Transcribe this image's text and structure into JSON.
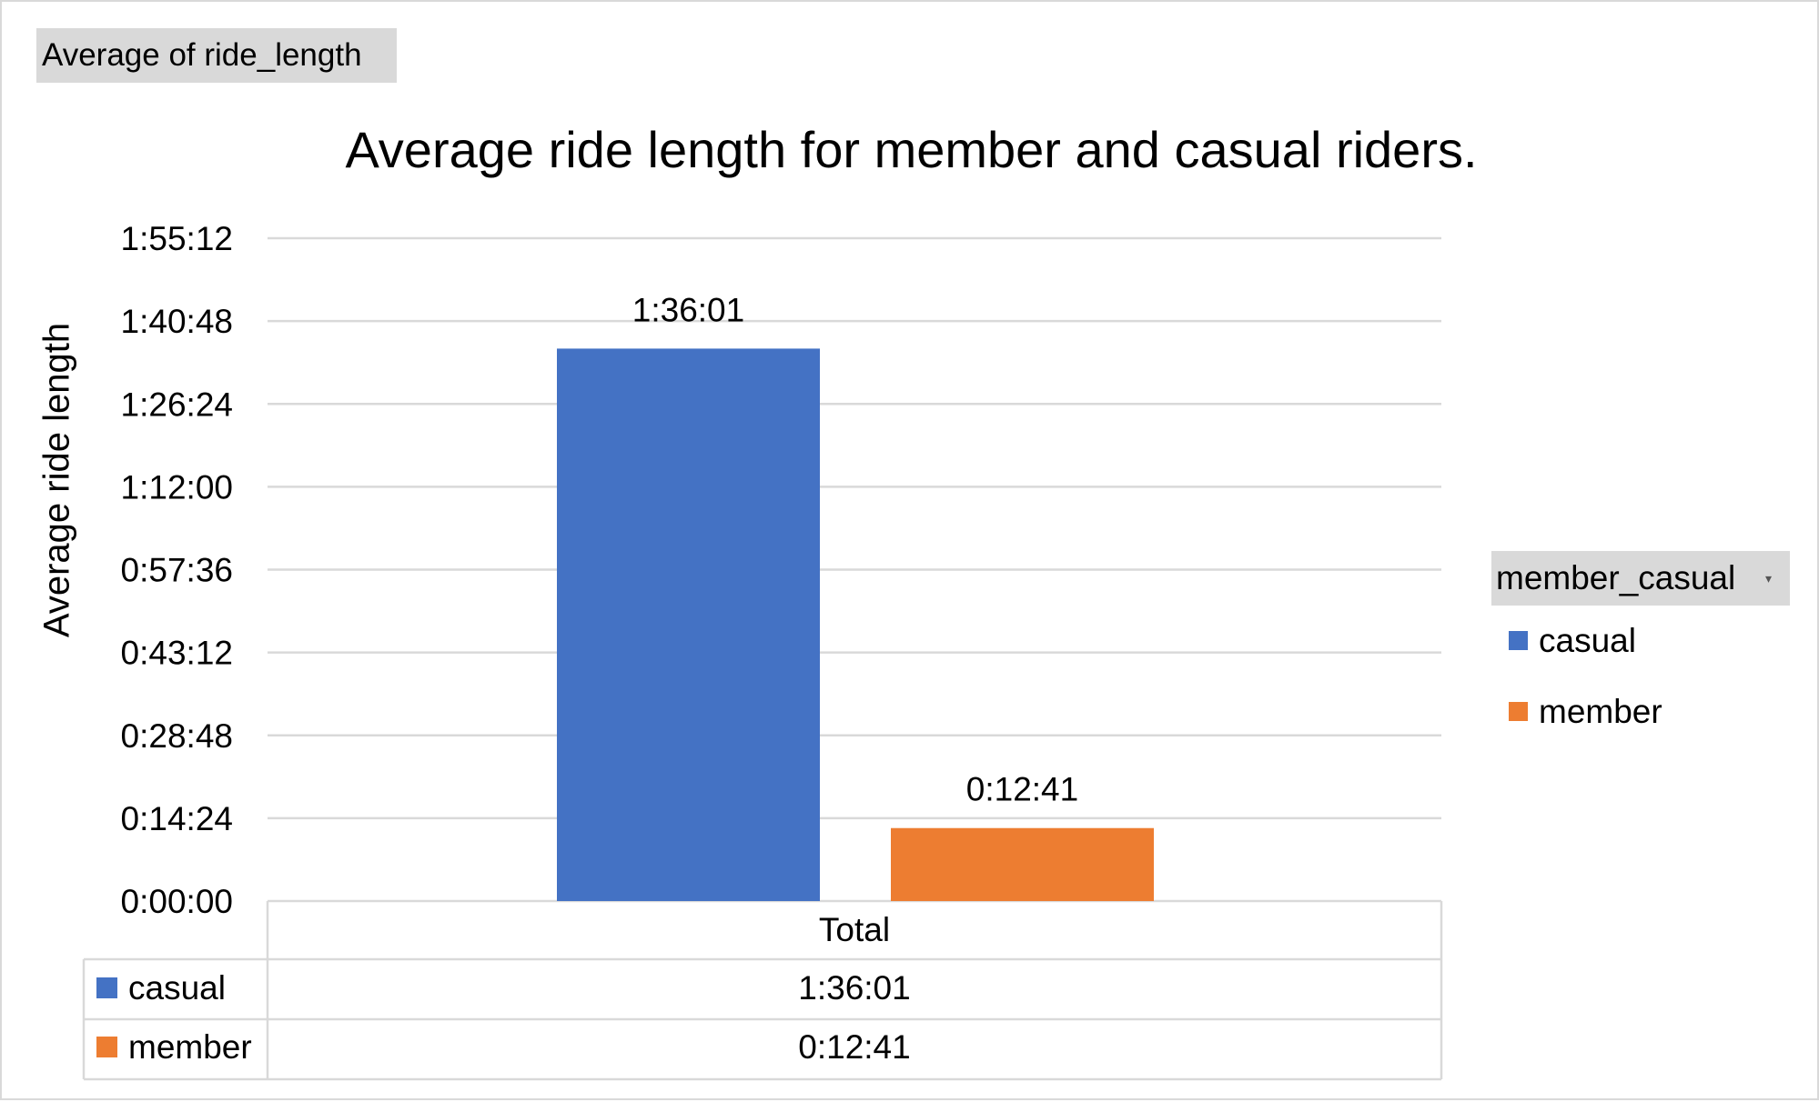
{
  "field_button": "Average  of ride_length",
  "chart_data": {
    "type": "bar",
    "title": "Average ride length for member and casual riders.",
    "xlabel": "",
    "ylabel": "Average ride length",
    "categories": [
      "Total"
    ],
    "series": [
      {
        "name": "casual",
        "values": [
          "1:36:01"
        ],
        "seconds": [
          5761
        ],
        "color": "#4472C4"
      },
      {
        "name": "member",
        "values": [
          "0:12:41"
        ],
        "seconds": [
          761
        ],
        "color": "#ED7D31"
      }
    ],
    "y_ticks": [
      "0:00:00",
      "0:14:24",
      "0:28:48",
      "0:43:12",
      "0:57:36",
      "1:12:00",
      "1:26:24",
      "1:40:48",
      "1:55:12"
    ],
    "ylim_seconds": [
      0,
      6912
    ],
    "grid": true,
    "legend_position": "right",
    "legend_title": "member_casual",
    "data_table": {
      "header": "Total",
      "rows": [
        {
          "label": "casual",
          "value": "1:36:01"
        },
        {
          "label": "member",
          "value": "0:12:41"
        }
      ]
    }
  }
}
